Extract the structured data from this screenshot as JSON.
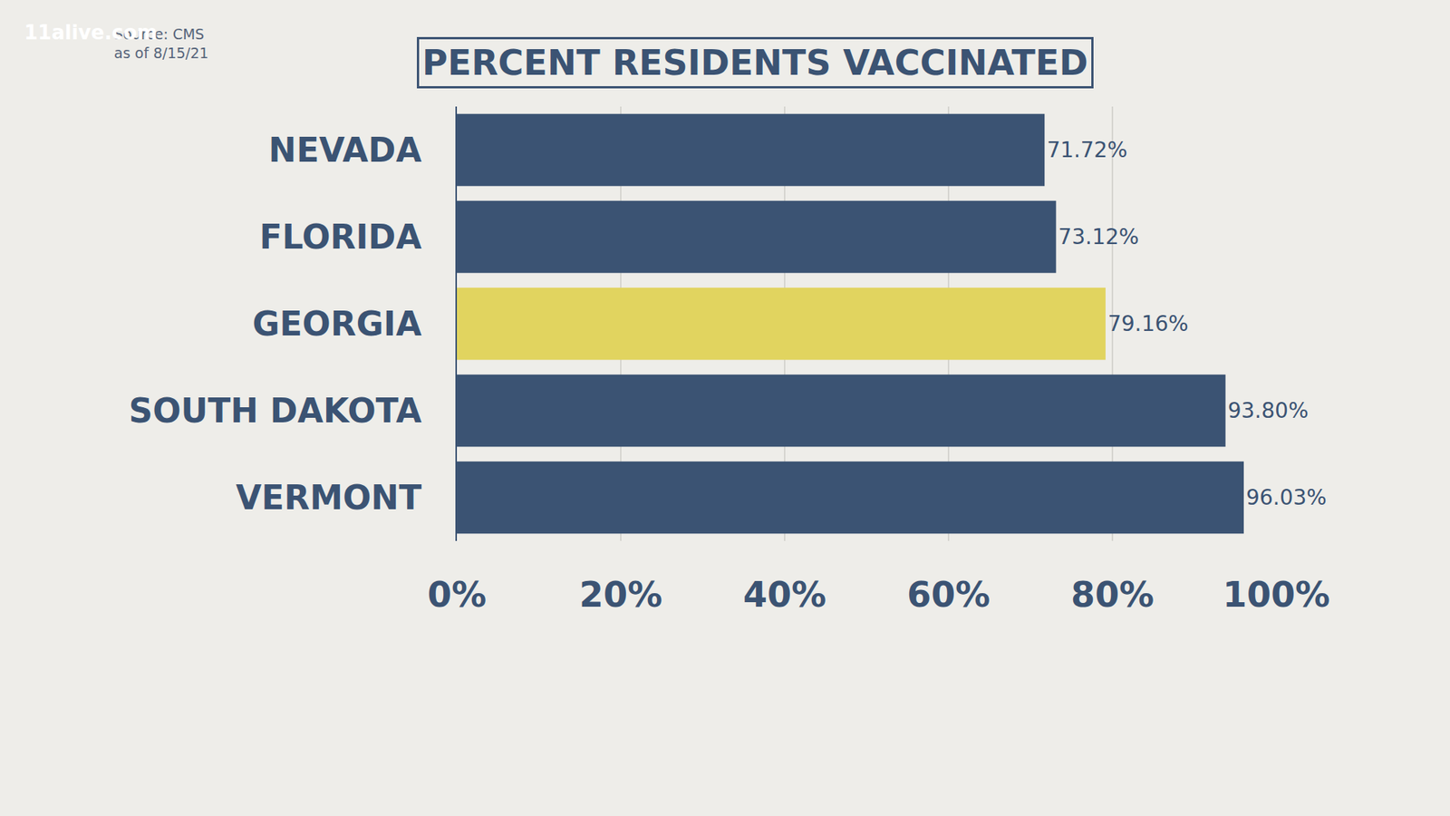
{
  "chart_data": {
    "type": "bar",
    "title": "PERCENT RESIDENTS VACCINATED",
    "annotations": [
      "Source: CMS",
      "as of 8/15/21",
      "11alive.com"
    ],
    "orientation": "horizontal",
    "categories": [
      "NEVADA",
      "FLORIDA",
      "GEORGIA",
      "SOUTH DAKOTA",
      "VERMONT"
    ],
    "values": [
      71.72,
      73.12,
      79.16,
      93.8,
      96.03
    ],
    "value_labels": [
      "71.72%",
      "73.12%",
      "79.16%",
      "93.80%",
      "96.03%"
    ],
    "colors": [
      "#3b5373",
      "#3b5373",
      "#e1d45f",
      "#3b5373",
      "#3b5373"
    ],
    "data_labels": true,
    "xlim": [
      0,
      100
    ],
    "xticks": [
      {
        "value": 0,
        "label": "0%"
      },
      {
        "value": 20,
        "label": "20%"
      },
      {
        "value": 40,
        "label": "40%"
      },
      {
        "value": 60,
        "label": "60%"
      },
      {
        "value": 80,
        "label": "80%"
      },
      {
        "value": 100,
        "label": "100%"
      }
    ],
    "grid": true
  }
}
